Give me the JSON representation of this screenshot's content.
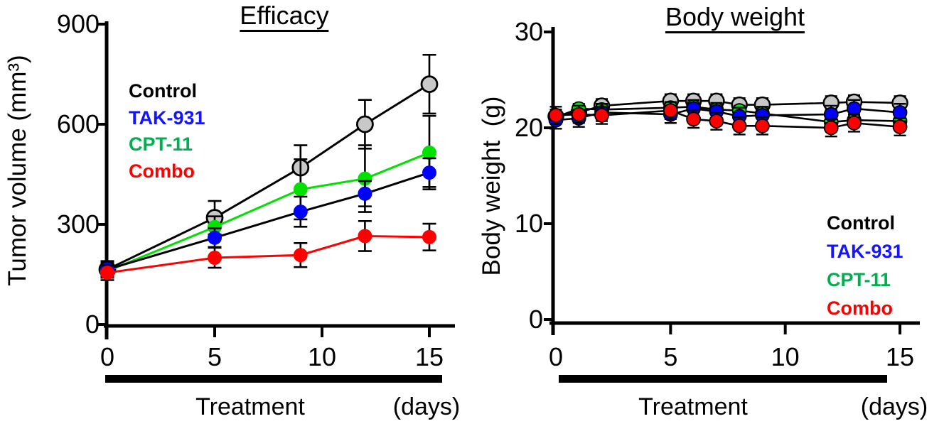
{
  "figure": {
    "background": "#ffffff",
    "text_color": "#000000"
  },
  "chart_data": [
    {
      "type": "line",
      "title": "Efficacy",
      "ylabel": "Tumor volume (mm³)",
      "x": [
        0,
        5,
        9,
        12,
        15
      ],
      "xticks": [
        0,
        5,
        10,
        15
      ],
      "yticks": [
        0,
        300,
        600,
        900
      ],
      "xlim": [
        0,
        16.2
      ],
      "ylim": [
        0,
        900
      ],
      "grid": false,
      "legend_position": "upper-left",
      "series": [
        {
          "name": "Control",
          "values": [
            165,
            320,
            470,
            600,
            720
          ],
          "err": [
            25,
            50,
            67,
            73,
            88
          ],
          "marker_fill": "#c8c8c8",
          "marker_stroke": "#000000",
          "line_color": "#000000"
        },
        {
          "name": "CPT-11",
          "values": [
            160,
            292,
            405,
            437,
            515
          ],
          "err": [
            20,
            32,
            90,
            100,
            110
          ],
          "marker_fill": "#00e100",
          "marker_stroke": "none",
          "line_color": "#00e100"
        },
        {
          "name": "TAK-931",
          "values": [
            165,
            260,
            338,
            392,
            455
          ],
          "err": [
            20,
            28,
            45,
            38,
            43
          ],
          "marker_fill": "#0000ff",
          "marker_stroke": "none",
          "line_color": "#000000"
        },
        {
          "name": "Combo",
          "values": [
            155,
            200,
            208,
            265,
            262
          ],
          "err": [
            22,
            30,
            36,
            45,
            40
          ],
          "marker_fill": "#ff0000",
          "marker_stroke": "none",
          "line_color": "#ff0000"
        }
      ],
      "legend": [
        {
          "label": "Control",
          "color": "#000000"
        },
        {
          "label": "TAK-931",
          "color": "#1414ff"
        },
        {
          "label": "CPT-11",
          "color": "#00b050"
        },
        {
          "label": "Combo",
          "color": "#ff0000"
        }
      ],
      "treatment_bar": {
        "label": "Treatment",
        "units_label": "(days)",
        "day_start": 0,
        "day_end": 15
      }
    },
    {
      "type": "line",
      "title": "Body weight",
      "ylabel": "Body weight  (g)",
      "x": [
        0,
        1,
        2,
        5,
        6,
        7,
        8,
        9,
        12,
        13,
        15
      ],
      "xticks": [
        0,
        5,
        10,
        15
      ],
      "yticks": [
        0,
        10,
        20,
        30
      ],
      "xlim": [
        0,
        15.9
      ],
      "ylim": [
        0,
        30
      ],
      "grid": false,
      "legend_position": "lower-right",
      "series": [
        {
          "name": "Control",
          "values": [
            21.2,
            21.6,
            22.3,
            22.8,
            22.8,
            22.8,
            22.4,
            22.4,
            22.6,
            22.7,
            22.6
          ],
          "err": 0.7,
          "marker_fill": "#c8c8c8",
          "marker_stroke": "#000000",
          "line_color": "#000000"
        },
        {
          "name": "CPT-11",
          "values": [
            21.1,
            22.0,
            21.9,
            22.1,
            22.2,
            21.9,
            21.8,
            21.5,
            20.6,
            20.8,
            20.7
          ],
          "err": 0.5,
          "marker_fill": "#00e100",
          "marker_stroke": "#000000",
          "line_color": "#000000"
        },
        {
          "name": "TAK-931",
          "values": [
            20.8,
            21.0,
            21.6,
            21.4,
            22.0,
            21.7,
            21.2,
            21.3,
            21.4,
            22.0,
            21.6
          ],
          "err": 0.9,
          "marker_fill": "#0000ff",
          "marker_stroke": "#000000",
          "line_color": "#000000"
        },
        {
          "name": "Combo",
          "values": [
            21.3,
            21.4,
            21.3,
            21.8,
            20.9,
            20.7,
            20.2,
            20.2,
            20.0,
            20.5,
            20.1
          ],
          "err": 0.9,
          "marker_fill": "#ff0000",
          "marker_stroke": "#000000",
          "line_color": "#000000"
        }
      ],
      "legend": [
        {
          "label": "Control",
          "color": "#000000"
        },
        {
          "label": "TAK-931",
          "color": "#1414ff"
        },
        {
          "label": "CPT-11",
          "color": "#00b050"
        },
        {
          "label": "Combo",
          "color": "#ff0000"
        }
      ],
      "treatment_bar": {
        "label": "Treatment",
        "units_label": "(days)",
        "day_start": 0,
        "day_end": 15
      }
    }
  ]
}
